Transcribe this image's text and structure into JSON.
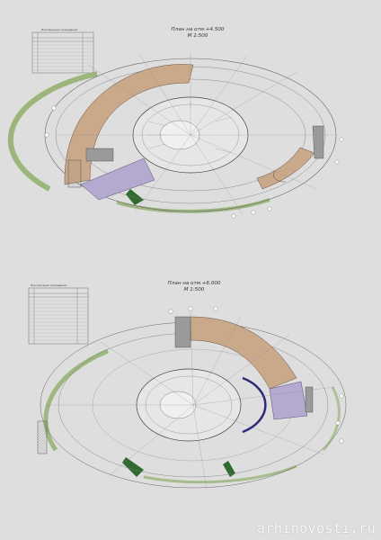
{
  "plan_upper": {
    "title": "План на отм.+4.500",
    "scale": "М 1:500",
    "table_caption": "Экспликация помещений"
  },
  "plan_lower": {
    "title": "План на отм.+6.000",
    "scale": "М 1:500",
    "table_caption": "Экспликация помещений"
  },
  "colors": {
    "background": "#dedede",
    "zone_tan": "#c9a98a",
    "zone_purple": "#b4a9cf",
    "zone_green": "#8fae6a",
    "line": "#555555"
  },
  "watermark": "arhinovosti.ru"
}
